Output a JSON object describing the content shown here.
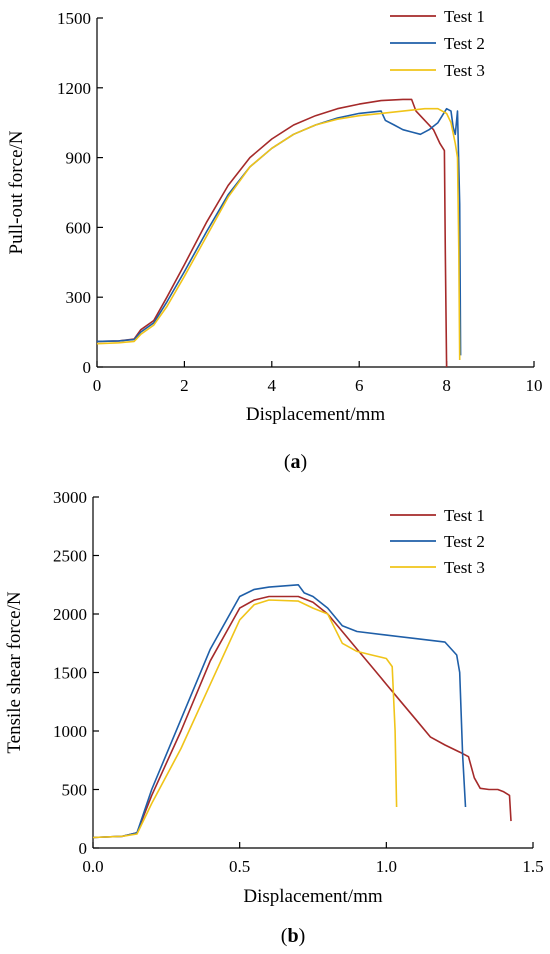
{
  "colors": {
    "test1": "#a52a2a",
    "test2": "#1f5fa8",
    "test3": "#f0c419",
    "axis": "#000000"
  },
  "chart_data": [
    {
      "id": "a",
      "type": "line",
      "panel_label": {
        "open": "(",
        "letter": "a",
        "close": ")"
      },
      "xlabel": "Displacement/mm",
      "ylabel": "Pull-out force/N",
      "xlim": [
        0,
        10
      ],
      "ylim": [
        0,
        1500
      ],
      "xticks": [
        0,
        2,
        4,
        6,
        8,
        10
      ],
      "yticks": [
        0,
        300,
        600,
        900,
        1200,
        1500
      ],
      "grid": false,
      "legend_placement": "top-right",
      "series": [
        {
          "name": "Test 1",
          "color": "#a52a2a",
          "x": [
            0,
            0.5,
            0.85,
            1.0,
            1.3,
            1.6,
            2.0,
            2.5,
            3.0,
            3.5,
            4.0,
            4.5,
            5.0,
            5.5,
            6.0,
            6.5,
            7.0,
            7.2,
            7.3,
            7.5,
            7.7,
            7.85,
            7.95,
            7.97,
            8.0
          ],
          "y": [
            110,
            112,
            120,
            160,
            200,
            300,
            440,
            620,
            780,
            900,
            980,
            1040,
            1080,
            1110,
            1130,
            1145,
            1150,
            1150,
            1100,
            1060,
            1020,
            960,
            930,
            500,
            0
          ]
        },
        {
          "name": "Test 2",
          "color": "#1f5fa8",
          "x": [
            0,
            0.5,
            0.85,
            1.0,
            1.3,
            1.6,
            2.0,
            2.5,
            3.0,
            3.5,
            4.0,
            4.5,
            5.0,
            5.5,
            6.0,
            6.5,
            6.6,
            6.8,
            7.0,
            7.2,
            7.4,
            7.6,
            7.8,
            8.0,
            8.1,
            8.15,
            8.2,
            8.25,
            8.3,
            8.32
          ],
          "y": [
            110,
            112,
            118,
            150,
            190,
            280,
            410,
            580,
            740,
            860,
            940,
            1000,
            1040,
            1070,
            1090,
            1100,
            1060,
            1040,
            1020,
            1010,
            1000,
            1020,
            1050,
            1110,
            1100,
            1030,
            1000,
            1100,
            700,
            50
          ]
        },
        {
          "name": "Test 3",
          "color": "#f0c419",
          "x": [
            0,
            0.5,
            0.85,
            1.0,
            1.3,
            1.6,
            2.0,
            2.5,
            3.0,
            3.5,
            4.0,
            4.5,
            5.0,
            5.5,
            6.0,
            6.5,
            7.0,
            7.5,
            7.8,
            8.0,
            8.1,
            8.2,
            8.25,
            8.28,
            8.3
          ],
          "y": [
            100,
            104,
            110,
            140,
            180,
            260,
            390,
            560,
            730,
            860,
            940,
            1000,
            1040,
            1065,
            1080,
            1090,
            1100,
            1110,
            1110,
            1090,
            1050,
            960,
            900,
            500,
            30
          ]
        }
      ]
    },
    {
      "id": "b",
      "type": "line",
      "panel_label": {
        "open": "(",
        "letter": "b",
        "close": ")"
      },
      "xlabel": "Displacement/mm",
      "ylabel": "Tensile shear force/N",
      "xlim": [
        0,
        1.5
      ],
      "ylim": [
        0,
        3000
      ],
      "xticks": [
        0.0,
        0.5,
        1.0,
        1.5
      ],
      "xtick_labels": [
        "0.0",
        "0.5",
        "1.0",
        "1.5"
      ],
      "yticks": [
        0,
        500,
        1000,
        1500,
        2000,
        2500,
        3000
      ],
      "grid": false,
      "legend_placement": "top-right",
      "series": [
        {
          "name": "Test 1",
          "color": "#a52a2a",
          "x": [
            0,
            0.1,
            0.15,
            0.2,
            0.3,
            0.4,
            0.5,
            0.55,
            0.6,
            0.7,
            0.75,
            0.8,
            0.85,
            0.9,
            0.95,
            1.0,
            1.05,
            1.1,
            1.15,
            1.2,
            1.25,
            1.28,
            1.3,
            1.32,
            1.35,
            1.38,
            1.4,
            1.42,
            1.425
          ],
          "y": [
            90,
            100,
            130,
            450,
            1000,
            1600,
            2050,
            2120,
            2150,
            2150,
            2100,
            2000,
            1850,
            1700,
            1550,
            1400,
            1250,
            1100,
            950,
            880,
            820,
            780,
            600,
            510,
            500,
            500,
            480,
            450,
            230
          ]
        },
        {
          "name": "Test 2",
          "color": "#1f5fa8",
          "x": [
            0,
            0.1,
            0.15,
            0.2,
            0.3,
            0.4,
            0.5,
            0.55,
            0.6,
            0.7,
            0.72,
            0.75,
            0.8,
            0.85,
            0.9,
            1.0,
            1.1,
            1.2,
            1.24,
            1.25,
            1.26,
            1.27
          ],
          "y": [
            90,
            100,
            130,
            500,
            1100,
            1700,
            2150,
            2210,
            2230,
            2250,
            2180,
            2150,
            2050,
            1900,
            1850,
            1820,
            1790,
            1760,
            1650,
            1500,
            800,
            350
          ]
        },
        {
          "name": "Test 3",
          "color": "#f0c419",
          "x": [
            0,
            0.1,
            0.15,
            0.2,
            0.3,
            0.4,
            0.5,
            0.55,
            0.6,
            0.7,
            0.75,
            0.8,
            0.82,
            0.85,
            0.9,
            0.95,
            1.0,
            1.02,
            1.03,
            1.035
          ],
          "y": [
            90,
            100,
            120,
            380,
            850,
            1400,
            1950,
            2080,
            2120,
            2110,
            2050,
            2000,
            1900,
            1750,
            1680,
            1650,
            1620,
            1550,
            1000,
            350
          ]
        }
      ]
    }
  ]
}
